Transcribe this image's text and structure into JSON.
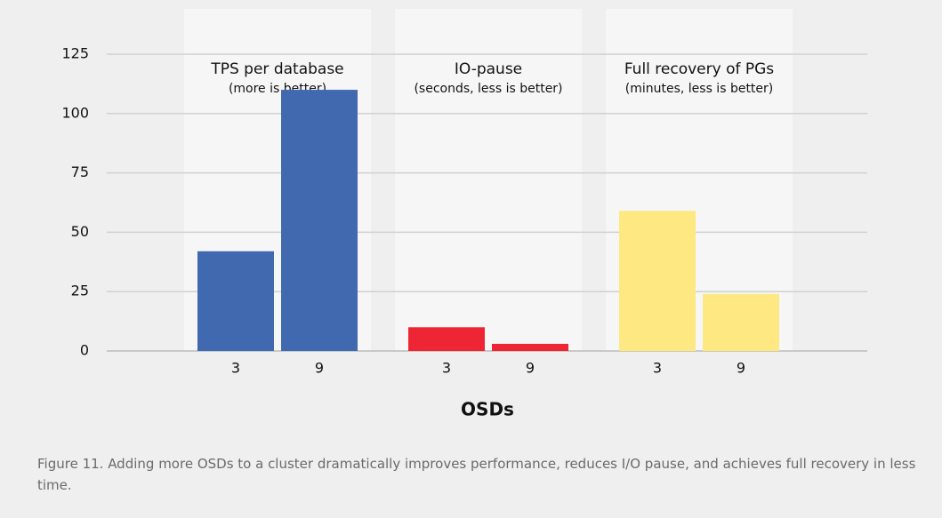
{
  "chart_data": {
    "type": "bar",
    "groups": [
      {
        "title": "TPS per database",
        "subtitle": "(more is better)",
        "categories": [
          "3",
          "9"
        ],
        "values": [
          42,
          110
        ],
        "color": "#4169b0"
      },
      {
        "title": "IO-pause",
        "subtitle": "(seconds, less is better)",
        "categories": [
          "3",
          "9"
        ],
        "values": [
          10,
          3
        ],
        "color": "#ee2534"
      },
      {
        "title": "Full recovery of PGs",
        "subtitle": "(minutes, less is better)",
        "categories": [
          "3",
          "9"
        ],
        "values": [
          59,
          24
        ],
        "color": "#fde882"
      }
    ],
    "xlabel": "OSDs",
    "ylim": [
      0,
      125
    ],
    "yticks": [
      0,
      25,
      50,
      75,
      100,
      125
    ],
    "grid": true
  },
  "caption": "Figure 11. Adding more OSDs to a cluster dramatically improves performance, reduces I/O pause, and achieves full recovery in less time."
}
